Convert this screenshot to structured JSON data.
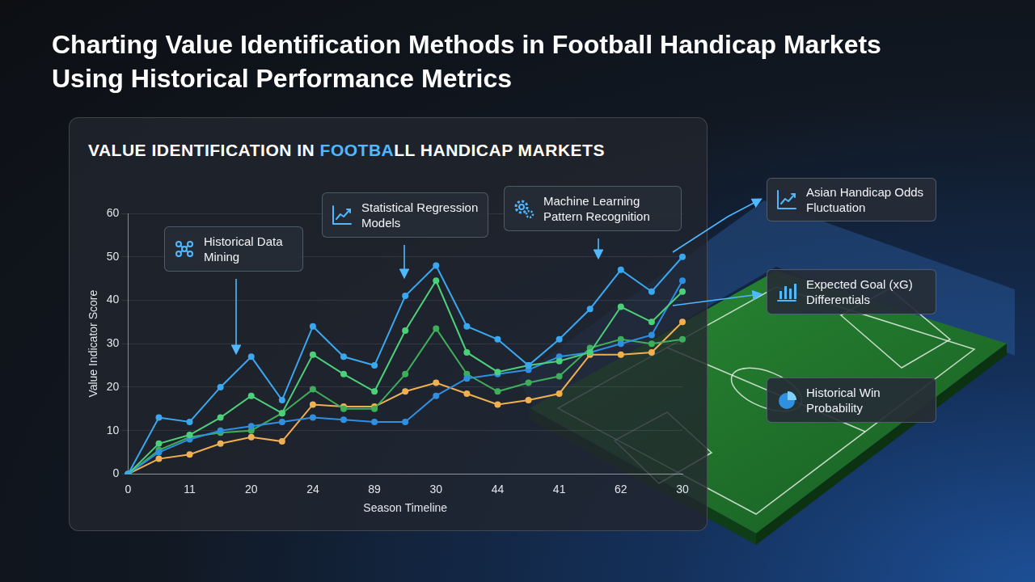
{
  "header": {
    "title": "Charting Value Identification Methods in Football Handicap Markets Using Historical Performance Metrics"
  },
  "chart_data": {
    "type": "line",
    "title": "VALUE IDENTIFICATION IN FOOTBALL HANDICAP MARKETS",
    "x_label": "Season Timeline",
    "y_label": "Value Indicator Score",
    "categories": [
      "0",
      null,
      "11",
      null,
      "20",
      null,
      "24",
      null,
      "89",
      null,
      "30",
      null,
      "44",
      null,
      "41",
      null,
      "62",
      null,
      "30"
    ],
    "series": [
      {
        "color": "#3aa8f0",
        "marker": "circle",
        "values": [
          0,
          13,
          12,
          20,
          27,
          17,
          34,
          27,
          25,
          41,
          48,
          34,
          31,
          25,
          31,
          38,
          47,
          42,
          50
        ]
      },
      {
        "color": "#4cd07a",
        "marker": "circle",
        "values": [
          0,
          7,
          9,
          13,
          18,
          14,
          27.5,
          23,
          19,
          33,
          44.5,
          28,
          23.5,
          25,
          26,
          28,
          38.5,
          35,
          42
        ]
      },
      {
        "color": "#2f8fe0",
        "marker": "circle",
        "values": [
          0,
          5,
          8,
          10,
          11,
          12,
          13,
          12.5,
          12,
          12,
          18,
          22,
          23,
          24,
          27,
          28,
          30,
          32,
          44.5
        ]
      },
      {
        "color": "#3fae5a",
        "marker": "circle",
        "values": [
          0,
          5.5,
          8.5,
          9.5,
          10,
          14,
          19.5,
          15,
          15,
          23,
          33.5,
          23,
          19,
          21,
          22.5,
          29,
          31,
          30,
          31
        ]
      },
      {
        "color": "#f0b050",
        "marker": "circle",
        "values": [
          0,
          3.5,
          4.5,
          7,
          8.5,
          7.5,
          16,
          15.5,
          15.5,
          19,
          21,
          18.5,
          16,
          17,
          18.5,
          27.5,
          27.5,
          28,
          35
        ]
      }
    ],
    "ylim": [
      0,
      60
    ],
    "yticks": [
      0,
      10,
      20,
      30,
      40,
      50,
      60
    ],
    "grid": true,
    "annotations": [
      "Historical Data Mining",
      "Statistical Regression Models",
      "Machine Learning Pattern Recognition"
    ]
  },
  "side_panel": {
    "items": [
      "Asian Handicap Odds Fluctuation",
      "Expected Goal (xG) Differentials",
      "Historical Win Probability"
    ]
  }
}
